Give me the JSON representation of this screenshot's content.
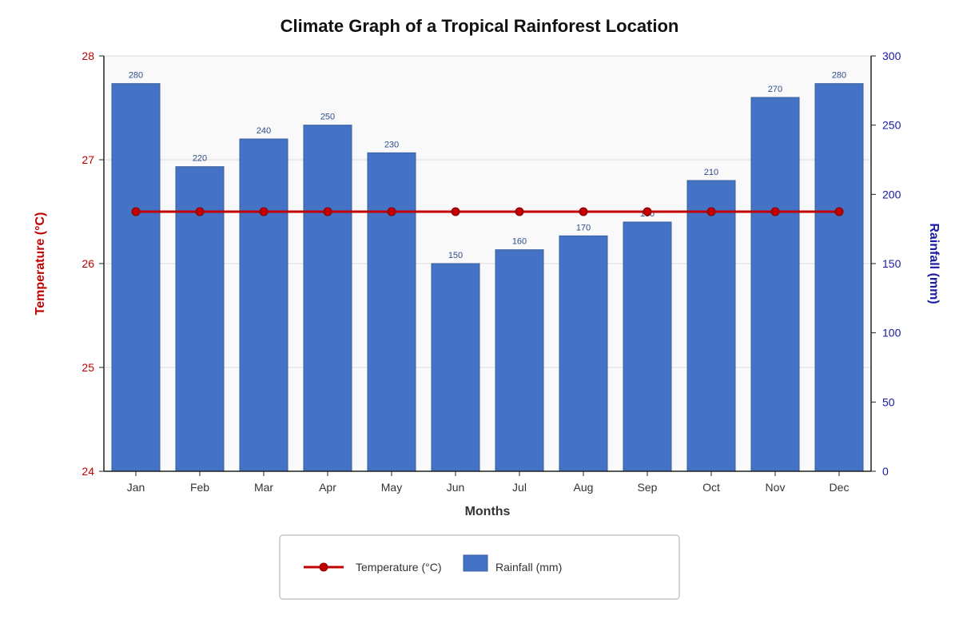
{
  "chart_data": {
    "type": "bar",
    "title": "Climate Graph of a Tropical Rainforest Location",
    "xlabel": "Months",
    "categories": [
      "Jan",
      "Feb",
      "Mar",
      "Apr",
      "May",
      "Jun",
      "Jul",
      "Aug",
      "Sep",
      "Oct",
      "Nov",
      "Dec"
    ],
    "y_left": {
      "label": "Temperature (°C)",
      "range": [
        24,
        28
      ],
      "ticks": [
        "24",
        "25",
        "26",
        "27",
        "28"
      ]
    },
    "y_right": {
      "label": "Rainfall (mm)",
      "range": [
        0,
        300
      ],
      "ticks": [
        "0",
        "50",
        "100",
        "150",
        "200",
        "250",
        "300"
      ]
    },
    "series": [
      {
        "name": "Rainfall (mm)",
        "type": "bar",
        "axis": "right",
        "color": "#4472c4",
        "values": [
          280,
          220,
          240,
          250,
          230,
          150,
          160,
          170,
          180,
          210,
          270,
          280
        ],
        "labels": [
          "280",
          "220",
          "240",
          "250",
          "230",
          "150",
          "160",
          "170",
          "180",
          "210",
          "270",
          "280"
        ]
      },
      {
        "name": "Temperature (°C)",
        "type": "line",
        "axis": "left",
        "color": "#c00000",
        "values": [
          26.5,
          26.5,
          26.5,
          26.5,
          26.5,
          26.5,
          26.5,
          26.5,
          26.5,
          26.5,
          26.5,
          26.5
        ]
      }
    ],
    "grid": true,
    "legend_position": "bottom-center",
    "legend": {
      "temperature": "Temperature (°C)",
      "rainfall": "Rainfall (mm)"
    }
  }
}
